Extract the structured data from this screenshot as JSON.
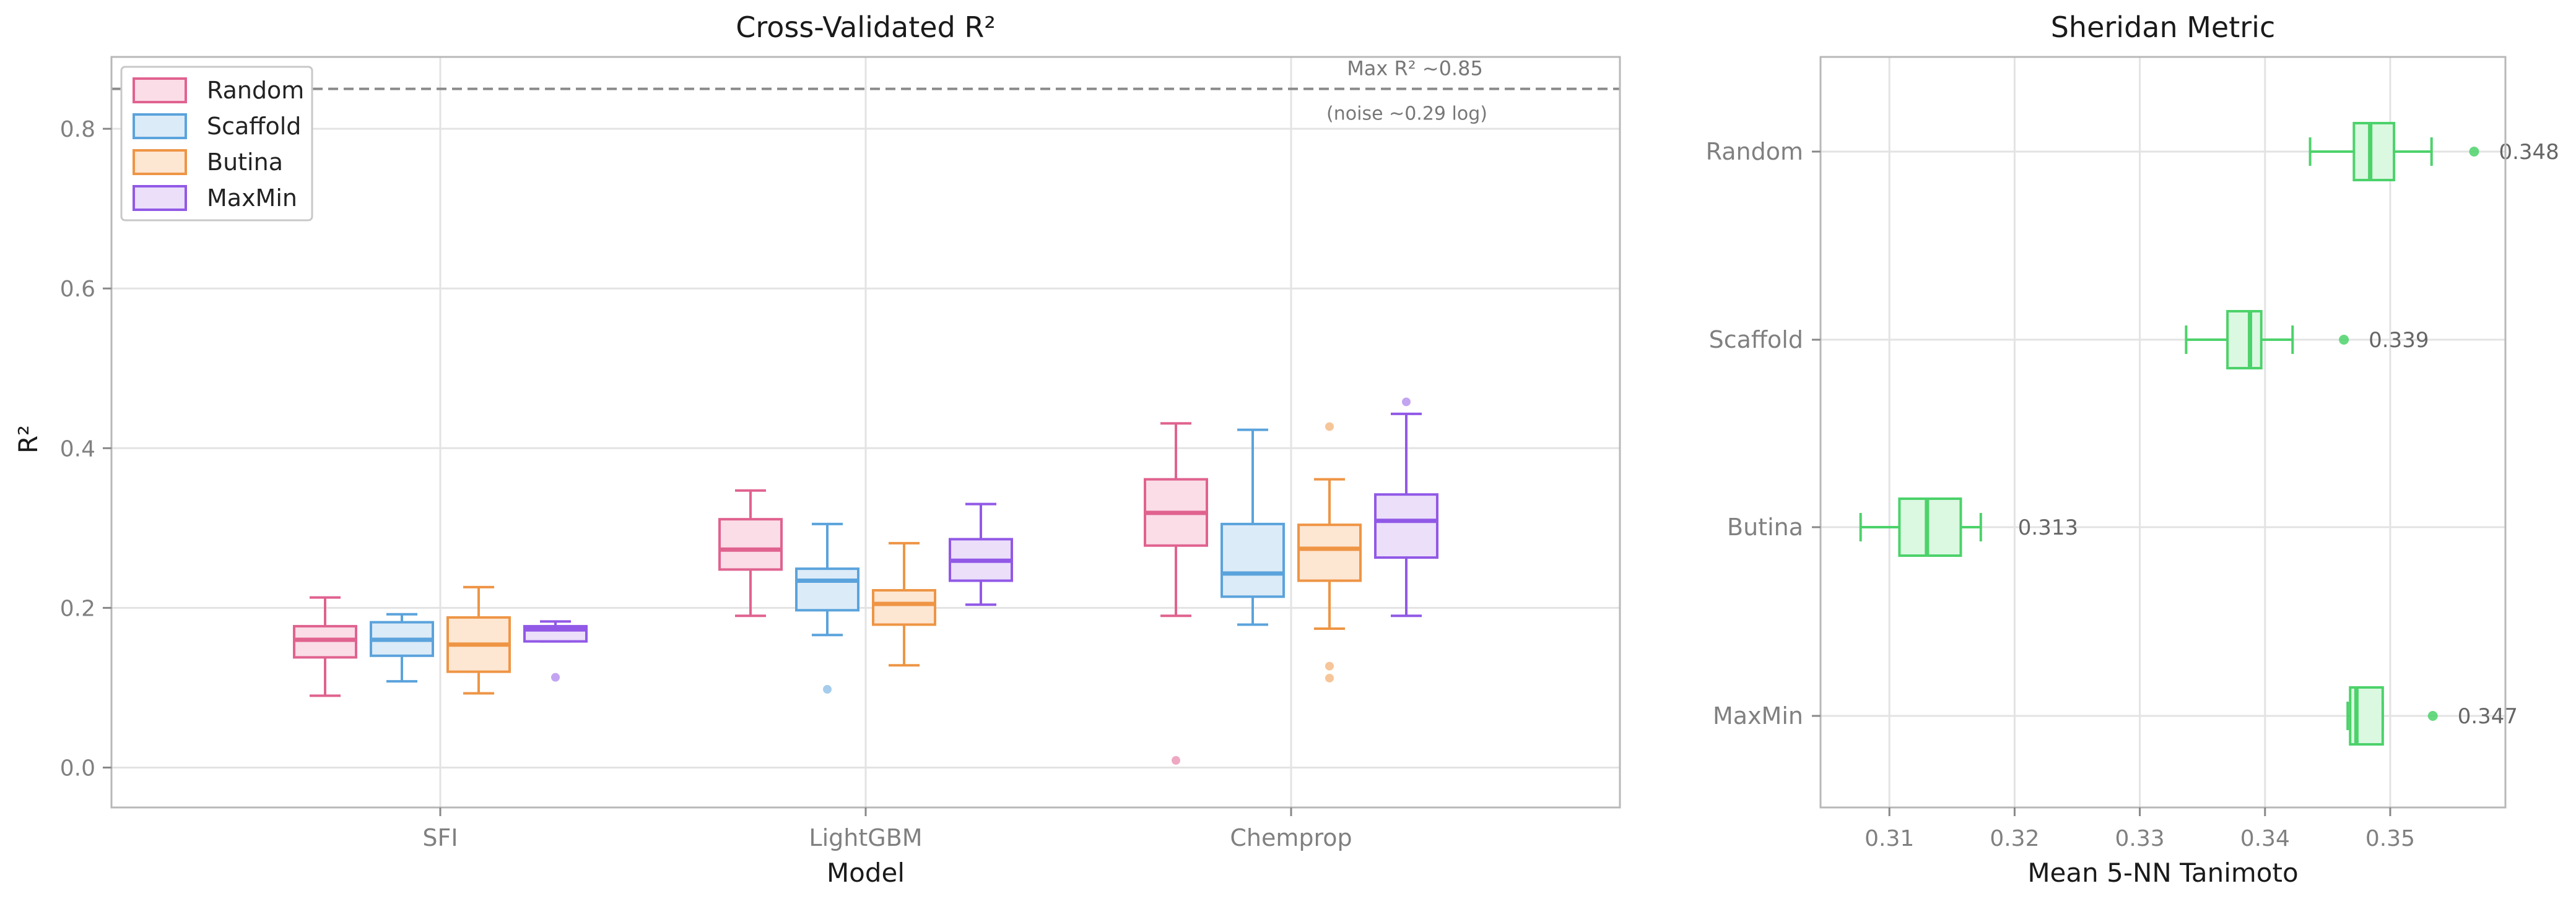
{
  "figure": {
    "background": "#ffffff"
  },
  "chart_data": [
    {
      "type": "box",
      "title": "Cross-Validated R²",
      "xlabel": "Model",
      "ylabel": "R²",
      "ylim": [
        -0.05,
        0.89
      ],
      "yticks": [
        0.0,
        0.2,
        0.4,
        0.6,
        0.8
      ],
      "ytick_labels": [
        "0.0",
        "0.2",
        "0.4",
        "0.6",
        "0.8"
      ],
      "grid": true,
      "legend_position": "top-left",
      "categories": [
        "SFI",
        "LightGBM",
        "Chemprop"
      ],
      "series": [
        {
          "name": "Random",
          "color": "#e0628f",
          "fill": "#fadde7",
          "boxes": [
            {
              "whisker_low": 0.09,
              "q1": 0.138,
              "median": 0.16,
              "q3": 0.177,
              "whisker_high": 0.213,
              "outliers": []
            },
            {
              "whisker_low": 0.19,
              "q1": 0.248,
              "median": 0.273,
              "q3": 0.311,
              "whisker_high": 0.347,
              "outliers": []
            },
            {
              "whisker_low": 0.19,
              "q1": 0.278,
              "median": 0.319,
              "q3": 0.361,
              "whisker_high": 0.431,
              "outliers": [
                0.009
              ]
            }
          ]
        },
        {
          "name": "Scaffold",
          "color": "#5ba3dc",
          "fill": "#dcebf8",
          "boxes": [
            {
              "whisker_low": 0.108,
              "q1": 0.14,
              "median": 0.16,
              "q3": 0.182,
              "whisker_high": 0.192,
              "outliers": []
            },
            {
              "whisker_low": 0.166,
              "q1": 0.197,
              "median": 0.234,
              "q3": 0.249,
              "whisker_high": 0.305,
              "outliers": [
                0.098
              ]
            },
            {
              "whisker_low": 0.179,
              "q1": 0.214,
              "median": 0.243,
              "q3": 0.305,
              "whisker_high": 0.423,
              "outliers": []
            }
          ]
        },
        {
          "name": "Butina",
          "color": "#ee9545",
          "fill": "#fde6d2",
          "boxes": [
            {
              "whisker_low": 0.093,
              "q1": 0.12,
              "median": 0.154,
              "q3": 0.188,
              "whisker_high": 0.226,
              "outliers": []
            },
            {
              "whisker_low": 0.128,
              "q1": 0.179,
              "median": 0.205,
              "q3": 0.222,
              "whisker_high": 0.281,
              "outliers": []
            },
            {
              "whisker_low": 0.174,
              "q1": 0.234,
              "median": 0.274,
              "q3": 0.304,
              "whisker_high": 0.361,
              "outliers": [
                0.427,
                0.127,
                0.112
              ]
            }
          ]
        },
        {
          "name": "MaxMin",
          "color": "#9159e6",
          "fill": "#ebdffa",
          "boxes": [
            {
              "whisker_low": 0.158,
              "q1": 0.158,
              "median": 0.173,
              "q3": 0.177,
              "whisker_high": 0.183,
              "outliers": [
                0.113
              ]
            },
            {
              "whisker_low": 0.204,
              "q1": 0.234,
              "median": 0.259,
              "q3": 0.286,
              "whisker_high": 0.33,
              "outliers": []
            },
            {
              "whisker_low": 0.19,
              "q1": 0.263,
              "median": 0.309,
              "q3": 0.342,
              "whisker_high": 0.443,
              "outliers": [
                0.458
              ]
            }
          ]
        }
      ],
      "reference_line": {
        "value": 0.85,
        "label": "Max R² ~0.85",
        "sublabel": "(noise ~0.29 log)"
      }
    },
    {
      "type": "box",
      "orientation": "horizontal",
      "title": "Sheridan Metric",
      "xlabel": "Mean 5-NN Tanimoto",
      "ylabel": "",
      "xlim": [
        0.3045,
        0.3592
      ],
      "xticks": [
        0.31,
        0.32,
        0.33,
        0.34,
        0.35
      ],
      "xtick_labels": [
        "0.31",
        "0.32",
        "0.33",
        "0.34",
        "0.35"
      ],
      "grid": true,
      "color": "#4cd26a",
      "fill": "#dbf8e1",
      "categories": [
        "Random",
        "Scaffold",
        "Butina",
        "MaxMin"
      ],
      "boxes": [
        {
          "whisker_low": 0.3436,
          "q1": 0.3471,
          "median": 0.3484,
          "q3": 0.3503,
          "whisker_high": 0.3533,
          "mean": 0.3567,
          "mean_label": "0.348"
        },
        {
          "whisker_low": 0.3337,
          "q1": 0.337,
          "median": 0.3388,
          "q3": 0.3397,
          "whisker_high": 0.3422,
          "mean": 0.3463,
          "mean_label": "0.339"
        },
        {
          "whisker_low": 0.3077,
          "q1": 0.3108,
          "median": 0.313,
          "q3": 0.3157,
          "whisker_high": 0.3173,
          "mean": null,
          "mean_label": "0.313"
        },
        {
          "whisker_low": 0.3466,
          "q1": 0.3468,
          "median": 0.3473,
          "q3": 0.3494,
          "whisker_high": 0.3494,
          "mean": 0.3534,
          "mean_label": "0.347"
        }
      ]
    }
  ]
}
